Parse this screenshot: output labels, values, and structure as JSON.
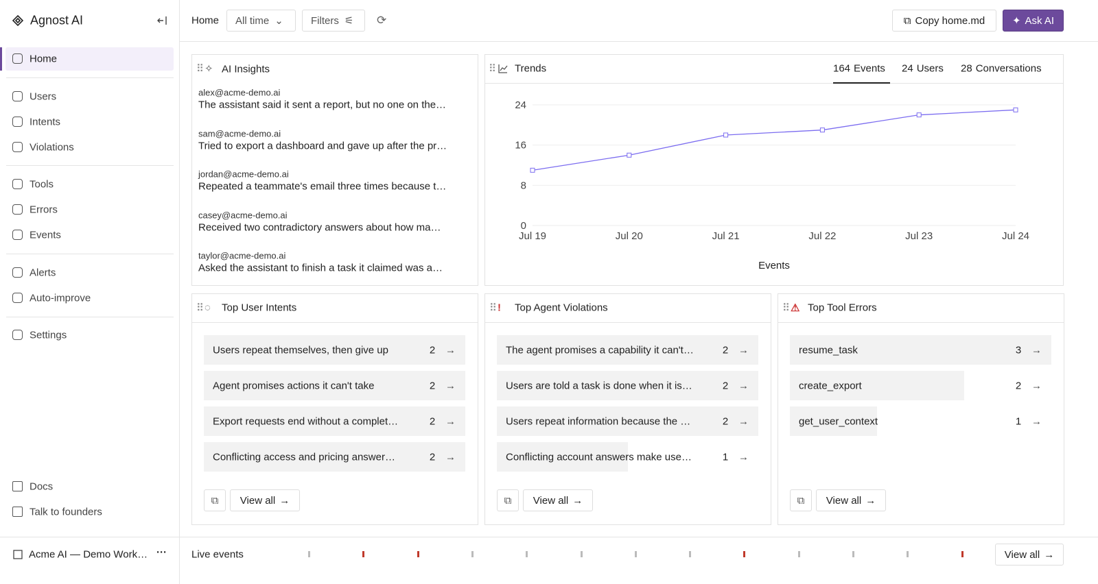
{
  "sidebar": {
    "brand": "Agnost AI",
    "nav_groups": [
      [
        "Home"
      ],
      [
        "Users",
        "Intents",
        "Violations"
      ],
      [
        "Tools",
        "Errors",
        "Events"
      ],
      [
        "Alerts",
        "Auto-improve"
      ],
      [
        "Settings"
      ]
    ],
    "bottom_links": [
      "Docs",
      "Talk to founders"
    ],
    "workspace": "Acme AI — Demo Work…"
  },
  "toolbar": {
    "breadcrumb": "Home",
    "range": "All time",
    "filters": "Filters",
    "copy_button": "Copy home.md",
    "ask_button": "Ask AI"
  },
  "insights": {
    "title": "AI Insights",
    "items": [
      {
        "user": "alex@acme-demo.ai",
        "text": "The assistant said it sent a report, but no one on the…"
      },
      {
        "user": "sam@acme-demo.ai",
        "text": "Tried to export a dashboard and gave up after the pr…"
      },
      {
        "user": "jordan@acme-demo.ai",
        "text": "Repeated a teammate's email three times because t…"
      },
      {
        "user": "casey@acme-demo.ai",
        "text": "Received two contradictory answers about how ma…"
      },
      {
        "user": "taylor@acme-demo.ai",
        "text": "Asked the assistant to finish a task it claimed was a…"
      }
    ]
  },
  "trends": {
    "title": "Trends",
    "tabs": [
      {
        "count": 164,
        "label": "Events"
      },
      {
        "count": 24,
        "label": "Users"
      },
      {
        "count": 28,
        "label": "Conversations"
      }
    ],
    "active_tab": 0,
    "chart": {
      "type": "line",
      "x": [
        "Jul 19",
        "Jul 20",
        "Jul 21",
        "Jul 22",
        "Jul 23",
        "Jul 24"
      ],
      "values": [
        11,
        14,
        18,
        19,
        22,
        23
      ],
      "ylim": [
        0,
        24
      ],
      "yticks": [
        0,
        8,
        16,
        24
      ],
      "xlabel": "Events",
      "color": "#7b6cf0",
      "grid": true
    }
  },
  "panels": [
    {
      "title": "Top User Intents",
      "items": [
        {
          "label": "Users repeat themselves, then give up",
          "count": 2
        },
        {
          "label": "Agent promises actions it can't take",
          "count": 2
        },
        {
          "label": "Export requests end without a complet…",
          "count": 2
        },
        {
          "label": "Conflicting access and pricing answer…",
          "count": 2
        }
      ],
      "view_all": "View all"
    },
    {
      "title": "Top Agent Violations",
      "items": [
        {
          "label": "The agent promises a capability it can't…",
          "count": 2
        },
        {
          "label": "Users are told a task is done when it is…",
          "count": 2
        },
        {
          "label": "Users repeat information because the …",
          "count": 2
        },
        {
          "label": "Conflicting account answers make use…",
          "count": 1
        }
      ],
      "view_all": "View all"
    },
    {
      "title": "Top Tool Errors",
      "items": [
        {
          "label": "resume_task",
          "count": 3
        },
        {
          "label": "create_export",
          "count": 2
        },
        {
          "label": "get_user_context",
          "count": 1
        }
      ],
      "view_all": "View all"
    }
  ],
  "live": {
    "label": "Live events",
    "view_all": "View all"
  }
}
